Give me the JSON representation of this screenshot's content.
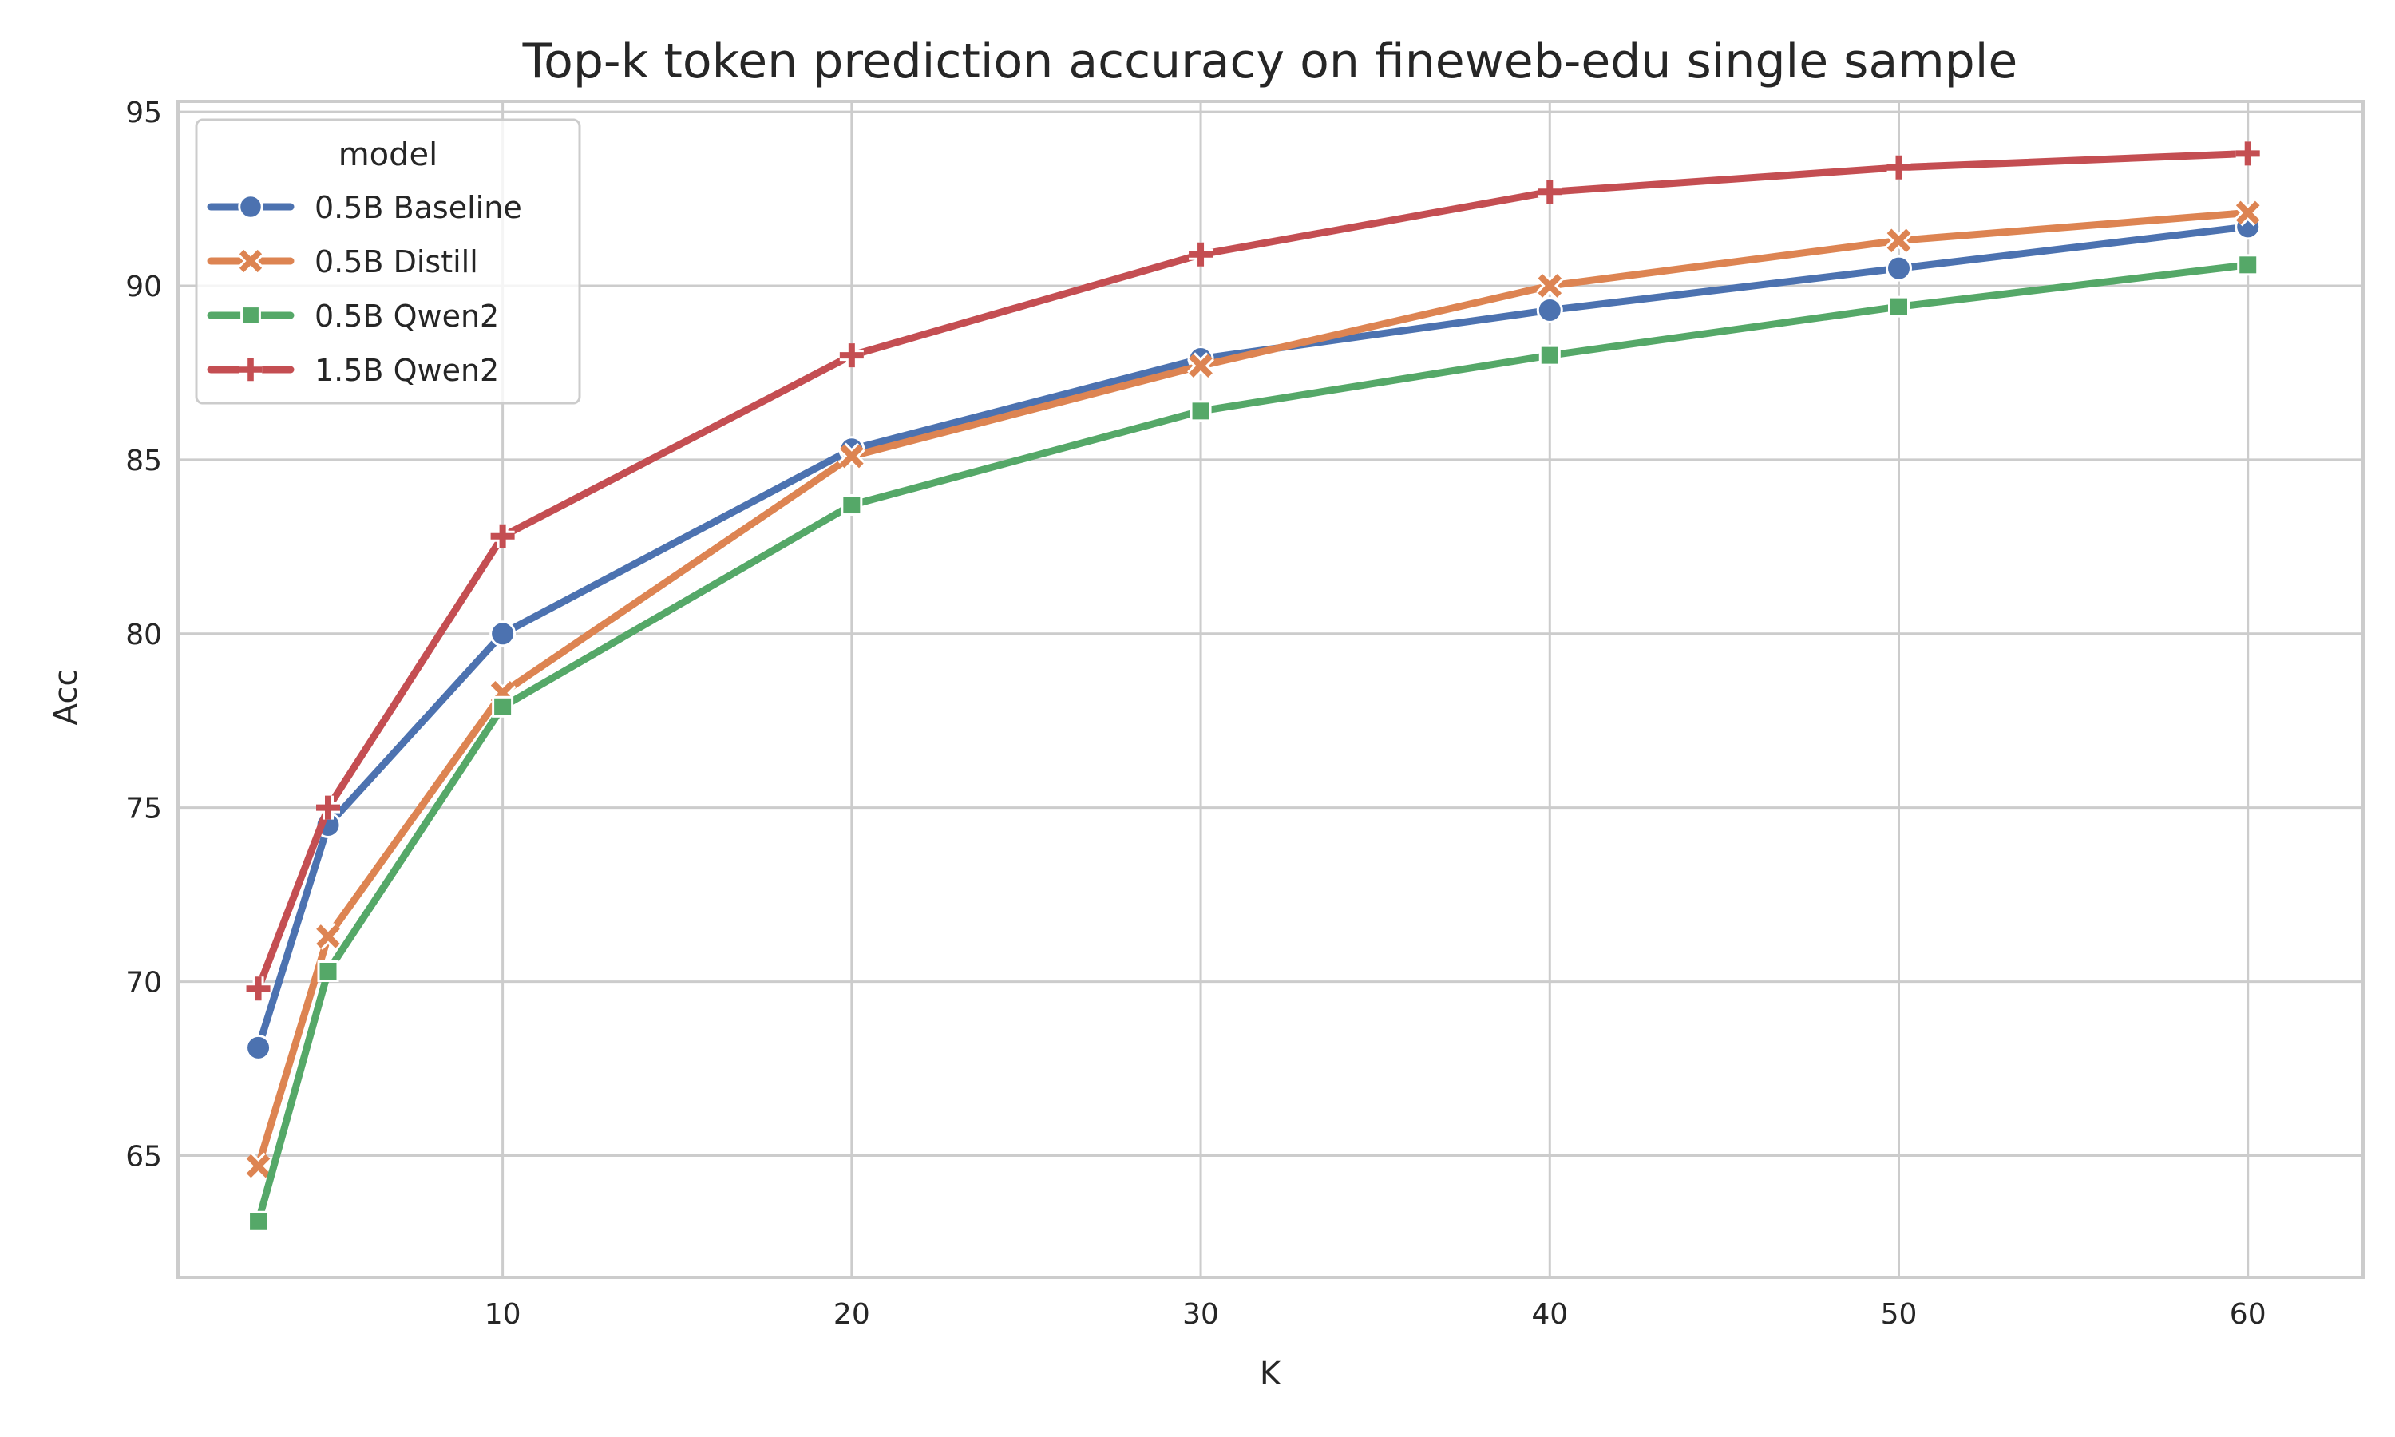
{
  "chart_data": {
    "type": "line",
    "title": "Top-k token prediction accuracy on fineweb-edu single sample",
    "xlabel": "K",
    "ylabel": "Acc",
    "x": [
      3,
      5,
      10,
      20,
      30,
      40,
      50,
      60
    ],
    "xlim": [
      0.7,
      63.3
    ],
    "ylim": [
      61.5,
      95.3
    ],
    "xticks": [
      10,
      20,
      30,
      40,
      50,
      60
    ],
    "yticks": [
      65,
      70,
      75,
      80,
      85,
      90,
      95
    ],
    "grid": true,
    "legend": {
      "title": "model",
      "placement": "top-left"
    },
    "series": [
      {
        "name": "0.5B Baseline",
        "color": "#4c72b0",
        "marker": "circle",
        "values": [
          68.1,
          74.5,
          80.0,
          85.3,
          87.9,
          89.3,
          90.5,
          91.7
        ]
      },
      {
        "name": "0.5B Distill",
        "color": "#dd8452",
        "marker": "x",
        "values": [
          64.7,
          71.3,
          78.3,
          85.1,
          87.7,
          90.0,
          91.3,
          92.1
        ]
      },
      {
        "name": "0.5B Qwen2",
        "color": "#55a868",
        "marker": "square",
        "values": [
          63.1,
          70.3,
          77.9,
          83.7,
          86.4,
          88.0,
          89.4,
          90.6
        ]
      },
      {
        "name": "1.5B Qwen2",
        "color": "#c44e52",
        "marker": "plus",
        "values": [
          69.8,
          75.0,
          82.8,
          88.0,
          90.9,
          92.7,
          93.4,
          93.8
        ]
      }
    ]
  }
}
